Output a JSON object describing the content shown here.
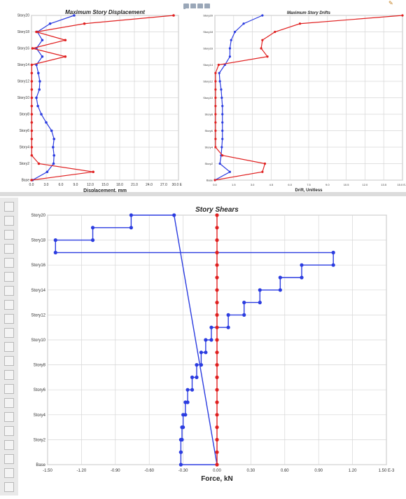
{
  "toolbar_top": {
    "icons": [
      "save-icon",
      "grid-icon",
      "chart-icon",
      "settings-icon",
      "pencil-icon"
    ]
  },
  "colors": {
    "displacement": "#2b3ce0",
    "drift": "#e02020",
    "grid": "#d6d6d6"
  },
  "chart_data": [
    {
      "type": "line",
      "title": "Maximum Story Displacement",
      "xlabel": "Displacement, mm",
      "ylabel": "",
      "x_ticks": [
        "0.0",
        "3.0",
        "6.0",
        "9.0",
        "12.0",
        "15.0",
        "18.0",
        "21.0",
        "24.0",
        "27.0",
        "30.0 E-3"
      ],
      "xlim": [
        0,
        30
      ],
      "y_ticks": [
        "Base",
        "Story2",
        "Story4",
        "Story6",
        "Story8",
        "Story10",
        "Story12",
        "Story14",
        "Story16",
        "Story18",
        "Story20"
      ],
      "stories": [
        0,
        1,
        2,
        3,
        4,
        5,
        6,
        7,
        8,
        9,
        10,
        11,
        12,
        13,
        14,
        15,
        16,
        17,
        18,
        19,
        20
      ],
      "series": [
        {
          "color": "#2b3ce0",
          "values": [
            0.2,
            3.2,
            4.5,
            4.6,
            4.4,
            4.6,
            4.1,
            3.0,
            2.0,
            1.3,
            1.0,
            1.6,
            1.7,
            1.4,
            1.0,
            2.2,
            1.0,
            2.2,
            1.2,
            3.8,
            8.7
          ]
        },
        {
          "color": "#e02020",
          "values": [
            0.0,
            12.6,
            1.5,
            0.05,
            0.05,
            0.05,
            0.05,
            0.05,
            0.05,
            0.05,
            0.05,
            0.05,
            0.05,
            0.05,
            0.05,
            6.9,
            0.2,
            6.9,
            1.0,
            10.8,
            29.0
          ]
        }
      ]
    },
    {
      "type": "line",
      "title": "Maximum Story Drifts",
      "xlabel": "Drift, Unitless",
      "ylabel": "",
      "x_ticks": [
        "0.0",
        "1.5",
        "3.0",
        "4.5",
        "6.0",
        "7.5",
        "9.0",
        "10.5",
        "12.0",
        "13.5",
        "15.0 E-3"
      ],
      "xlim": [
        0,
        15
      ],
      "y_ticks": [
        "Base",
        "Story2",
        "Story4",
        "Story6",
        "Story8",
        "Story10",
        "Story12",
        "Story14",
        "Story16",
        "Story18",
        "Story20"
      ],
      "stories": [
        0,
        1,
        2,
        3,
        4,
        5,
        6,
        7,
        8,
        9,
        10,
        11,
        12,
        13,
        14,
        15,
        16,
        17,
        18,
        19,
        20
      ],
      "series": [
        {
          "color": "#2b3ce0",
          "values": [
            0.0,
            1.2,
            0.4,
            0.5,
            0.55,
            0.6,
            0.6,
            0.6,
            0.6,
            0.6,
            0.55,
            0.5,
            0.4,
            0.35,
            0.8,
            1.2,
            1.2,
            1.3,
            1.6,
            2.3,
            3.8
          ]
        },
        {
          "color": "#e02020",
          "values": [
            0.0,
            3.8,
            4.0,
            0.6,
            0.05,
            0.05,
            0.05,
            0.05,
            0.05,
            0.05,
            0.05,
            0.05,
            0.05,
            0.05,
            0.3,
            4.2,
            3.7,
            3.8,
            4.8,
            6.8,
            15.0
          ]
        }
      ]
    },
    {
      "type": "line",
      "title": "Story Shears",
      "xlabel": "Force, kN",
      "ylabel": "",
      "x_ticks": [
        "-1.50",
        "-1.20",
        "-0.90",
        "-0.60",
        "-0.30",
        "0.00",
        "0.30",
        "0.60",
        "0.90",
        "1.20",
        "1.50 E-3"
      ],
      "xlim": [
        -1.5,
        1.5
      ],
      "y_ticks": [
        "Base",
        "Story2",
        "Story4",
        "Story6",
        "Story8",
        "Story10",
        "Story12",
        "Story14",
        "Story16",
        "Story18",
        "Story20"
      ],
      "stories": [
        0,
        1,
        2,
        3,
        4,
        5,
        6,
        7,
        8,
        9,
        10,
        11,
        12,
        13,
        14,
        15,
        16,
        17,
        18,
        19,
        20
      ],
      "series": [
        {
          "color": "#2b3ce0",
          "shape": "step",
          "values": [
            -0.32,
            -0.32,
            -0.31,
            -0.3,
            -0.28,
            -0.26,
            -0.22,
            -0.18,
            -0.14,
            -0.1,
            -0.05,
            0.1,
            0.24,
            0.38,
            0.56,
            0.75,
            1.03,
            -1.43,
            -1.1,
            -0.76,
            -0.38
          ]
        },
        {
          "color": "#e02020",
          "shape": "markers",
          "values": [
            0.0,
            0.0,
            0.0,
            0.0,
            0.0,
            0.0,
            0.0,
            0.0,
            0.0,
            0.0,
            0.0,
            0.0,
            0.0,
            0.0,
            0.0,
            0.0,
            0.0,
            0.0,
            0.0,
            0.0,
            0.0
          ]
        }
      ]
    }
  ]
}
